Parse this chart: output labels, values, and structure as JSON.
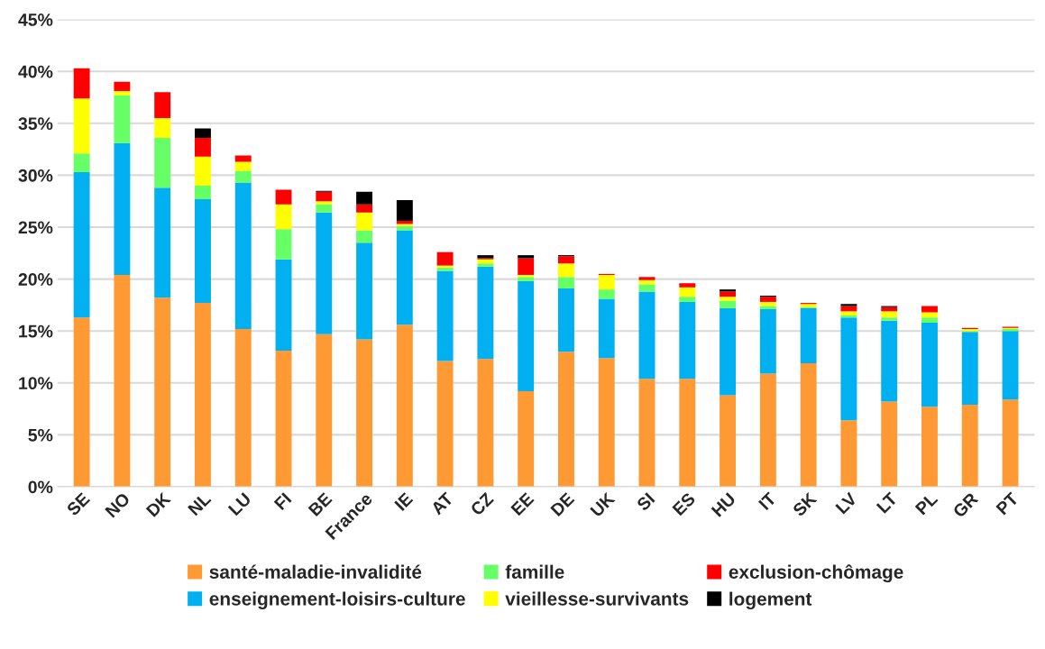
{
  "chart_data": {
    "type": "bar",
    "stacked": true,
    "categories": [
      "SE",
      "NO",
      "DK",
      "NL",
      "LU",
      "FI",
      "BE",
      "France",
      "IE",
      "AT",
      "CZ",
      "EE",
      "DE",
      "UK",
      "SI",
      "ES",
      "HU",
      "IT",
      "SK",
      "LV",
      "LT",
      "PL",
      "GR",
      "PT"
    ],
    "series": [
      {
        "name": "santé-maladie-invalidité",
        "color": "#ff9933",
        "values": [
          16.3,
          20.4,
          18.2,
          17.7,
          15.2,
          13.1,
          14.7,
          14.2,
          15.6,
          12.1,
          12.3,
          9.2,
          13.0,
          12.4,
          10.4,
          10.4,
          8.8,
          10.9,
          11.9,
          6.4,
          8.2,
          7.7,
          7.9,
          8.4
        ]
      },
      {
        "name": "enseignement-loisirs-culture",
        "color": "#00b0f0",
        "values": [
          14.0,
          12.7,
          10.6,
          10.0,
          14.1,
          8.8,
          11.7,
          9.3,
          9.1,
          8.7,
          8.9,
          10.6,
          6.1,
          5.7,
          8.4,
          7.4,
          8.4,
          6.2,
          5.3,
          9.9,
          7.8,
          8.1,
          7.0,
          6.6
        ]
      },
      {
        "name": "famille",
        "color": "#66ff66",
        "values": [
          1.8,
          4.6,
          4.8,
          1.3,
          1.1,
          2.9,
          0.8,
          1.2,
          0.4,
          0.3,
          0.3,
          0.4,
          1.1,
          0.9,
          0.7,
          0.5,
          0.7,
          0.3,
          0.1,
          0.2,
          0.3,
          0.5,
          0.1,
          0.2
        ]
      },
      {
        "name": "vieillesse-survivants",
        "color": "#ffff00",
        "values": [
          5.3,
          0.4,
          1.9,
          2.8,
          0.9,
          2.4,
          0.3,
          1.7,
          0.2,
          0.2,
          0.4,
          0.2,
          1.3,
          1.4,
          0.4,
          0.9,
          0.4,
          0.4,
          0.3,
          0.4,
          0.6,
          0.5,
          0.2,
          0.1
        ]
      },
      {
        "name": "exclusion-chômage",
        "color": "#ff0000",
        "values": [
          2.9,
          0.9,
          2.5,
          1.8,
          0.6,
          1.4,
          0.9,
          0.8,
          0.3,
          1.3,
          0.1,
          1.6,
          0.7,
          0.1,
          0.3,
          0.4,
          0.5,
          0.5,
          0.1,
          0.5,
          0.4,
          0.6,
          0.1,
          0.1
        ]
      },
      {
        "name": "logement",
        "color": "#000000",
        "values": [
          0,
          0,
          0,
          0.9,
          0,
          0,
          0.1,
          1.2,
          2.0,
          0,
          0.3,
          0.3,
          0.1,
          0,
          0,
          0,
          0.2,
          0.1,
          0,
          0.2,
          0.1,
          0,
          0,
          0
        ]
      }
    ],
    "ylim": [
      0,
      45
    ],
    "yticks": [
      {
        "value": 0,
        "label": "0%"
      },
      {
        "value": 5,
        "label": "5%"
      },
      {
        "value": 10,
        "label": "10%"
      },
      {
        "value": 15,
        "label": "15%"
      },
      {
        "value": 20,
        "label": "20%"
      },
      {
        "value": 25,
        "label": "25%"
      },
      {
        "value": 30,
        "label": "30%"
      },
      {
        "value": 35,
        "label": "35%"
      },
      {
        "value": 40,
        "label": "40%"
      },
      {
        "value": 45,
        "label": "45%"
      }
    ],
    "grid": "y",
    "legend": "bottom"
  }
}
